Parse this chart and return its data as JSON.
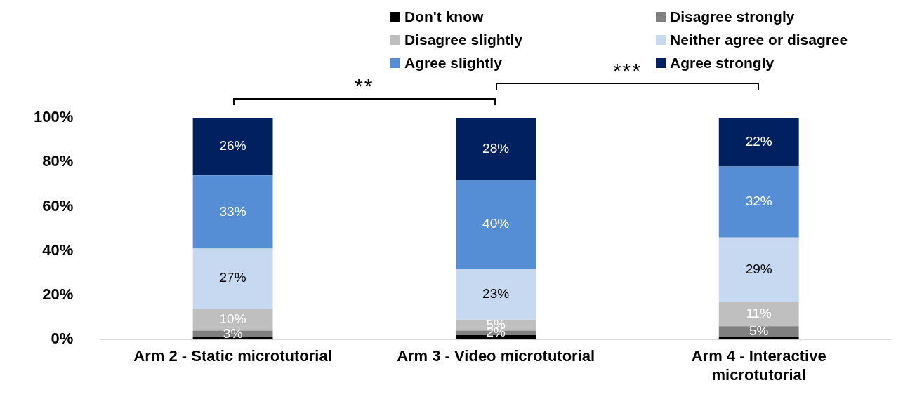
{
  "chart_data": {
    "type": "bar",
    "stacked": true,
    "categories": [
      "Arm 2 - Static microtutorial",
      "Arm 3 - Video microtutorial",
      "Arm 4 - Interactive microtutorial"
    ],
    "series": [
      {
        "name": "Don't know",
        "color": "#000000",
        "values": [
          1,
          2,
          1
        ],
        "value_labels": [
          null,
          null,
          null
        ]
      },
      {
        "name": "Disagree strongly",
        "color": "#808080",
        "values": [
          3,
          2,
          5
        ],
        "value_labels": [
          "3%",
          "2%",
          "5%"
        ]
      },
      {
        "name": "Disagree slightly",
        "color": "#bfbfbf",
        "values": [
          10,
          5,
          11
        ],
        "value_labels": [
          "10%",
          "5%",
          "11%"
        ]
      },
      {
        "name": "Neither agree or disagree",
        "color": "#c6d9f1",
        "values": [
          27,
          23,
          29
        ],
        "value_labels": [
          "27%",
          "23%",
          "29%"
        ]
      },
      {
        "name": "Agree slightly",
        "color": "#558ed5",
        "values": [
          33,
          40,
          32
        ],
        "value_labels": [
          "33%",
          "40%",
          "32%"
        ]
      },
      {
        "name": "Agree strongly",
        "color": "#002060",
        "values": [
          26,
          28,
          22
        ],
        "value_labels": [
          "26%",
          "28%",
          "22%"
        ]
      }
    ],
    "ylim": [
      0,
      100
    ],
    "yticks": [
      {
        "value": 0,
        "label": "0%"
      },
      {
        "value": 20,
        "label": "20%"
      },
      {
        "value": 40,
        "label": "40%"
      },
      {
        "value": 60,
        "label": "60%"
      },
      {
        "value": 80,
        "label": "80%"
      },
      {
        "value": 100,
        "label": "100%"
      }
    ],
    "annotations": [
      "**",
      "***"
    ],
    "legend": "top",
    "grid": false
  }
}
